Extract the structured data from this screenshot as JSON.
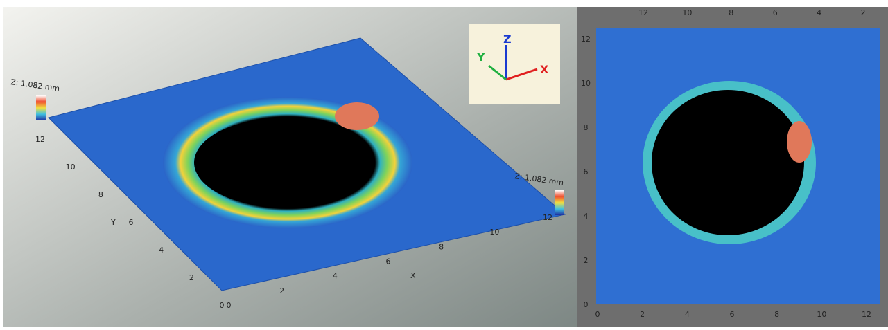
{
  "left_view": {
    "z_label_left": "Z: 1.082 mm",
    "z_label_right": "Z: 1.082 mm",
    "gizmo": {
      "x": "X",
      "y": "Y",
      "z": "Z"
    },
    "y_axis_name": "Y",
    "x_axis_name": "X",
    "y_ticks": [
      "12",
      "10",
      "8",
      "6",
      "4",
      "2",
      "0"
    ],
    "x_ticks": [
      "0",
      "2",
      "4",
      "6",
      "8",
      "10",
      "12"
    ]
  },
  "right_view": {
    "bottom_ticks": [
      "0",
      "2",
      "4",
      "6",
      "8",
      "10",
      "12"
    ],
    "left_ticks": [
      "0",
      "2",
      "4",
      "6",
      "8",
      "10",
      "12"
    ],
    "top_ticks": [
      "2",
      "4",
      "6",
      "8",
      "10",
      "12"
    ]
  }
}
